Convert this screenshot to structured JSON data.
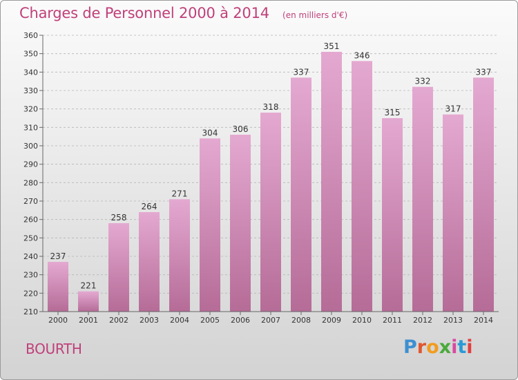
{
  "header": {
    "title": "Charges de Personnel 2000 à 2014",
    "subtitle": "(en milliers d'€)"
  },
  "footer": {
    "commune": "BOURTH",
    "logo_text": "Proxiti",
    "logo_colors": [
      "#3d8fd1",
      "#e0572e",
      "#f29c1f",
      "#4aaa3c",
      "#d84aa0",
      "#2a9ad6",
      "#e23f3f"
    ]
  },
  "colors": {
    "bar_top": "#e4a9d1",
    "bar_bottom": "#b56c97",
    "title": "#c0407a",
    "grid": "#b5b5b5"
  },
  "chart_data": {
    "type": "bar",
    "title": "Charges de Personnel 2000 à 2014",
    "subtitle": "(en milliers d'€)",
    "xlabel": "",
    "ylabel": "",
    "categories": [
      "2000",
      "2001",
      "2002",
      "2003",
      "2004",
      "2005",
      "2006",
      "2007",
      "2008",
      "2009",
      "2010",
      "2011",
      "2012",
      "2013",
      "2014"
    ],
    "values": [
      237,
      221,
      258,
      264,
      271,
      304,
      306,
      318,
      337,
      351,
      346,
      315,
      332,
      317,
      337
    ],
    "ylim": [
      210,
      360
    ],
    "yticks": [
      210,
      220,
      230,
      240,
      250,
      260,
      270,
      280,
      290,
      300,
      310,
      320,
      330,
      340,
      350,
      360
    ],
    "grid": true,
    "data_labels": true
  }
}
